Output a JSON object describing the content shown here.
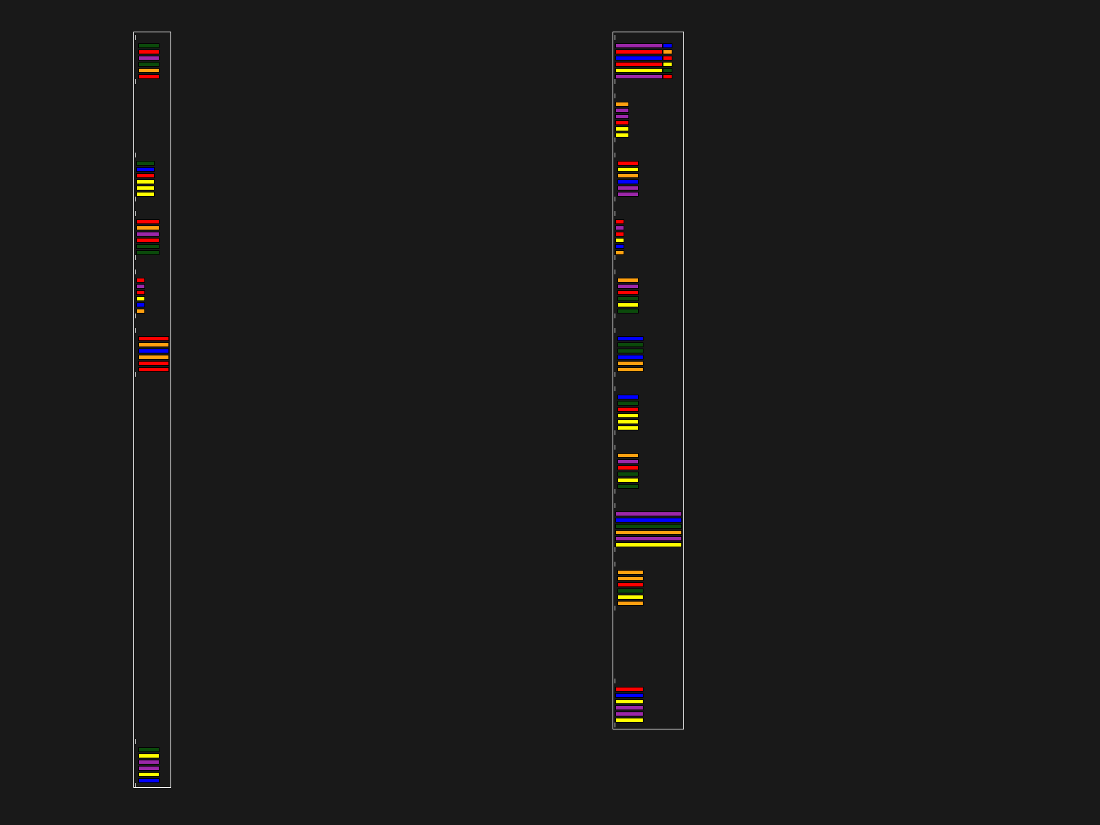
{
  "colors": {
    "background": "#191919",
    "panel_border": "#ffffff",
    "green": "#0b4a0b",
    "red": "#ff0000",
    "purple": "#9b27a8",
    "orange": "#ffa010",
    "yellow": "#ffff00",
    "blue": "#0000ff"
  },
  "panels": [
    {
      "id": "left",
      "groups": [
        {
          "rows": [
            "green",
            "red",
            "purple",
            "green",
            "orange",
            "red"
          ]
        },
        {
          "rows": [
            "green",
            "blue",
            "red",
            "yellow",
            "yellow",
            "yellow"
          ]
        },
        {
          "rows": [
            "red",
            "orange",
            "purple",
            "red",
            "green",
            "green"
          ]
        },
        {
          "rows": [
            "red",
            "purple",
            "red",
            "yellow",
            "blue",
            "orange"
          ]
        },
        {
          "rows": [
            "red",
            "orange",
            "blue",
            "orange",
            "red",
            "red"
          ]
        },
        {
          "rows": [
            "green",
            "yellow",
            "purple",
            "purple",
            "yellow",
            "blue"
          ]
        }
      ]
    },
    {
      "id": "right",
      "groups": [
        {
          "rows": [
            [
              "purple",
              "blue"
            ],
            [
              "red",
              "orange"
            ],
            [
              "blue",
              "red"
            ],
            [
              "red",
              "yellow"
            ],
            [
              "yellow",
              "green"
            ],
            [
              "purple",
              "red"
            ]
          ]
        },
        {
          "rows": [
            "orange",
            "purple",
            "purple",
            "red",
            "yellow",
            "yellow"
          ]
        },
        {
          "rows": [
            "red",
            "yellow",
            "orange",
            "blue",
            "purple",
            "purple"
          ]
        },
        {
          "rows": [
            "red",
            "purple",
            "red",
            "yellow",
            "blue",
            "orange"
          ]
        },
        {
          "rows": [
            "orange",
            "purple",
            "red",
            "green",
            "yellow",
            "green"
          ]
        },
        {
          "rows": [
            "blue",
            "green",
            "green",
            "blue",
            "orange",
            "orange"
          ]
        },
        {
          "rows": [
            "blue",
            "green",
            "red",
            "yellow",
            "yellow",
            "yellow"
          ]
        },
        {
          "rows": [
            "orange",
            "purple",
            "red",
            "green",
            "yellow",
            "green"
          ]
        },
        {
          "rows": [
            "purple",
            "blue",
            "green",
            "orange",
            "purple",
            "yellow"
          ]
        },
        {
          "rows": [
            "orange",
            "orange",
            "red",
            "green",
            "yellow",
            "orange"
          ]
        },
        {
          "rows": [
            "red",
            "blue",
            "yellow",
            "purple",
            "purple",
            "yellow"
          ]
        }
      ]
    }
  ]
}
